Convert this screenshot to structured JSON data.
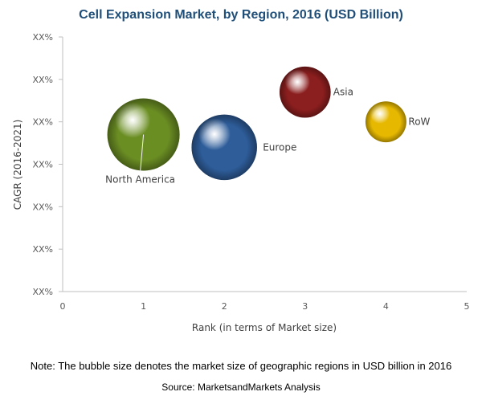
{
  "chart_data": {
    "type": "scatter",
    "title": "Cell Expansion Market, by Region, 2016 (USD Billion)",
    "xlabel": "Rank (in terms of Market size)",
    "ylabel": "CAGR (2016-2021)",
    "xlim": [
      0,
      5
    ],
    "x_ticks": [
      "0",
      "1",
      "2",
      "3",
      "4",
      "5"
    ],
    "y_ticks": [
      "XX%",
      "XX%",
      "XX%",
      "XX%",
      "XX%",
      "XX%",
      "XX%"
    ],
    "ylim": [
      0,
      6
    ],
    "grid": false,
    "legend": "none",
    "series": [
      {
        "name": "North America",
        "x": 1,
        "y": 3.7,
        "size": 1.0,
        "color": "#6b8e23"
      },
      {
        "name": "Europe",
        "x": 2,
        "y": 3.4,
        "size": 0.82,
        "color": "#2e5d9a"
      },
      {
        "name": "Asia",
        "x": 3,
        "y": 4.7,
        "size": 0.5,
        "color": "#8b1e1e"
      },
      {
        "name": "RoW",
        "x": 4,
        "y": 4.0,
        "size": 0.32,
        "color": "#e6b800"
      }
    ]
  },
  "note": "Note: The bubble size denotes the market size of geographic regions in USD billion in 2016",
  "source": "Source: MarketsandMarkets Analysis"
}
